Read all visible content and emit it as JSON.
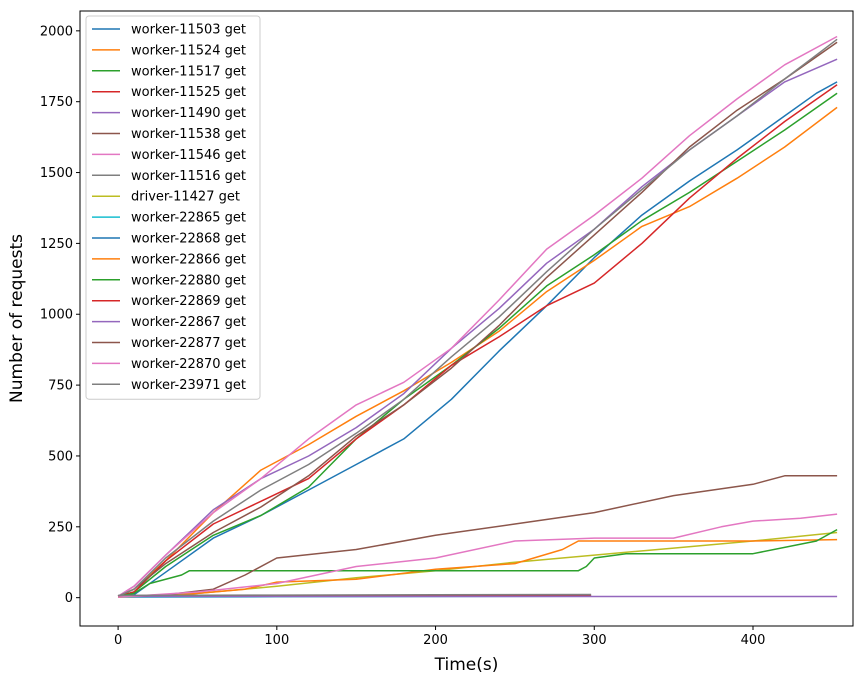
{
  "chart_data": {
    "type": "line",
    "title": "",
    "xlabel": "Time(s)",
    "ylabel": "Number of requests",
    "xlim": [
      -24,
      463
    ],
    "ylim": [
      -100,
      2070
    ],
    "xticks": [
      0,
      100,
      200,
      300,
      400
    ],
    "yticks": [
      0,
      250,
      500,
      750,
      1000,
      1250,
      1500,
      1750,
      2000
    ],
    "grid": false,
    "legend_position": "top-left",
    "series": [
      {
        "name": "worker-11503 get",
        "color": "#1f77b4",
        "x": [
          0,
          10,
          30,
          60,
          90,
          120,
          150,
          180,
          210,
          240,
          270,
          300,
          330,
          360,
          390,
          420,
          440,
          453
        ],
        "y": [
          5,
          10,
          90,
          210,
          290,
          380,
          470,
          560,
          700,
          870,
          1030,
          1200,
          1350,
          1470,
          1580,
          1700,
          1780,
          1820
        ]
      },
      {
        "name": "worker-11524 get",
        "color": "#ff7f0e",
        "x": [
          0,
          10,
          30,
          60,
          90,
          120,
          150,
          180,
          210,
          240,
          270,
          300,
          330,
          360,
          390,
          420,
          453
        ],
        "y": [
          5,
          30,
          130,
          300,
          450,
          540,
          640,
          730,
          830,
          940,
          1080,
          1190,
          1310,
          1380,
          1480,
          1590,
          1730
        ]
      },
      {
        "name": "worker-11517 get",
        "color": "#2ca02c",
        "x": [
          0,
          10,
          30,
          60,
          90,
          120,
          150,
          180,
          210,
          240,
          270,
          300,
          330,
          360,
          390,
          420,
          453
        ],
        "y": [
          5,
          20,
          110,
          220,
          290,
          390,
          560,
          700,
          820,
          950,
          1100,
          1210,
          1330,
          1430,
          1540,
          1650,
          1780
        ]
      },
      {
        "name": "worker-11525 get",
        "color": "#d62728",
        "x": [
          0,
          10,
          30,
          60,
          90,
          120,
          150,
          180,
          210,
          240,
          270,
          300,
          330,
          360,
          390,
          420,
          453
        ],
        "y": [
          5,
          20,
          130,
          260,
          340,
          420,
          560,
          680,
          820,
          920,
          1030,
          1110,
          1250,
          1410,
          1550,
          1680,
          1810
        ]
      },
      {
        "name": "worker-11490 get",
        "color": "#9467bd",
        "x": [
          0,
          10,
          30,
          60,
          90,
          120,
          150,
          180,
          210,
          240,
          270,
          300,
          330,
          360,
          390,
          420,
          453
        ],
        "y": [
          5,
          40,
          150,
          310,
          420,
          500,
          600,
          720,
          880,
          1020,
          1180,
          1300,
          1450,
          1580,
          1700,
          1820,
          1900
        ]
      },
      {
        "name": "worker-11538 get",
        "color": "#8c564b",
        "x": [
          0,
          10,
          30,
          60,
          90,
          120,
          150,
          180,
          210,
          240,
          270,
          300,
          330,
          360,
          390,
          420,
          453
        ],
        "y": [
          5,
          30,
          120,
          230,
          320,
          430,
          570,
          680,
          810,
          960,
          1130,
          1280,
          1430,
          1590,
          1720,
          1830,
          1960
        ]
      },
      {
        "name": "worker-11546 get",
        "color": "#e377c2",
        "x": [
          0,
          10,
          30,
          60,
          90,
          120,
          150,
          180,
          210,
          240,
          270,
          300,
          330,
          360,
          390,
          420,
          453
        ],
        "y": [
          5,
          40,
          150,
          300,
          420,
          560,
          680,
          760,
          880,
          1050,
          1230,
          1350,
          1480,
          1630,
          1760,
          1880,
          1980
        ]
      },
      {
        "name": "worker-11516 get",
        "color": "#7f7f7f",
        "x": [
          0,
          10,
          30,
          60,
          90,
          120,
          150,
          180,
          210,
          240,
          270,
          300,
          330,
          360,
          390,
          420,
          453
        ],
        "y": [
          5,
          30,
          140,
          270,
          380,
          470,
          580,
          700,
          850,
          990,
          1150,
          1300,
          1440,
          1580,
          1700,
          1830,
          1970
        ]
      },
      {
        "name": "driver-11427 get",
        "color": "#bcbd22",
        "x": [
          0,
          50,
          100,
          150,
          200,
          250,
          300,
          350,
          400,
          453
        ],
        "y": [
          2,
          15,
          40,
          70,
          95,
          125,
          150,
          175,
          200,
          230
        ]
      },
      {
        "name": "worker-22865 get",
        "color": "#17becf",
        "x": [
          0,
          100,
          200,
          298
        ],
        "y": [
          2,
          3,
          4,
          5
        ]
      },
      {
        "name": "worker-22868 get",
        "color": "#1f77b4",
        "x": [
          0,
          100,
          200,
          298
        ],
        "y": [
          4,
          5,
          6,
          7
        ]
      },
      {
        "name": "worker-22866 get",
        "color": "#ff7f0e",
        "x": [
          0,
          40,
          80,
          100,
          150,
          200,
          250,
          280,
          290,
          400,
          453
        ],
        "y": [
          2,
          10,
          30,
          55,
          65,
          100,
          120,
          170,
          200,
          200,
          205
        ]
      },
      {
        "name": "worker-22880 get",
        "color": "#2ca02c",
        "x": [
          0,
          10,
          20,
          40,
          45,
          100,
          200,
          290,
          295,
          300,
          320,
          400,
          440,
          453
        ],
        "y": [
          5,
          15,
          50,
          80,
          95,
          95,
          95,
          95,
          110,
          140,
          155,
          155,
          200,
          240
        ]
      },
      {
        "name": "worker-22869 get",
        "color": "#d62728",
        "x": [
          0,
          100,
          200,
          298
        ],
        "y": [
          6,
          7,
          8,
          9
        ]
      },
      {
        "name": "worker-22867 get",
        "color": "#9467bd",
        "x": [
          0,
          100,
          200,
          300,
          400,
          453
        ],
        "y": [
          4,
          4,
          4,
          4,
          4,
          4
        ]
      },
      {
        "name": "worker-22877 get",
        "color": "#8c564b",
        "x": [
          0,
          30,
          60,
          80,
          100,
          150,
          200,
          250,
          300,
          350,
          400,
          420,
          453
        ],
        "y": [
          5,
          10,
          30,
          80,
          140,
          170,
          220,
          260,
          300,
          360,
          400,
          430,
          430
        ]
      },
      {
        "name": "worker-22870 get",
        "color": "#e377c2",
        "x": [
          0,
          50,
          100,
          150,
          200,
          250,
          300,
          350,
          380,
          400,
          430,
          453
        ],
        "y": [
          2,
          20,
          50,
          110,
          140,
          200,
          210,
          210,
          250,
          270,
          280,
          295
        ]
      },
      {
        "name": "worker-23971 get",
        "color": "#7f7f7f",
        "x": [
          0,
          100,
          200,
          298
        ],
        "y": [
          8,
          9,
          10,
          11
        ]
      }
    ]
  }
}
